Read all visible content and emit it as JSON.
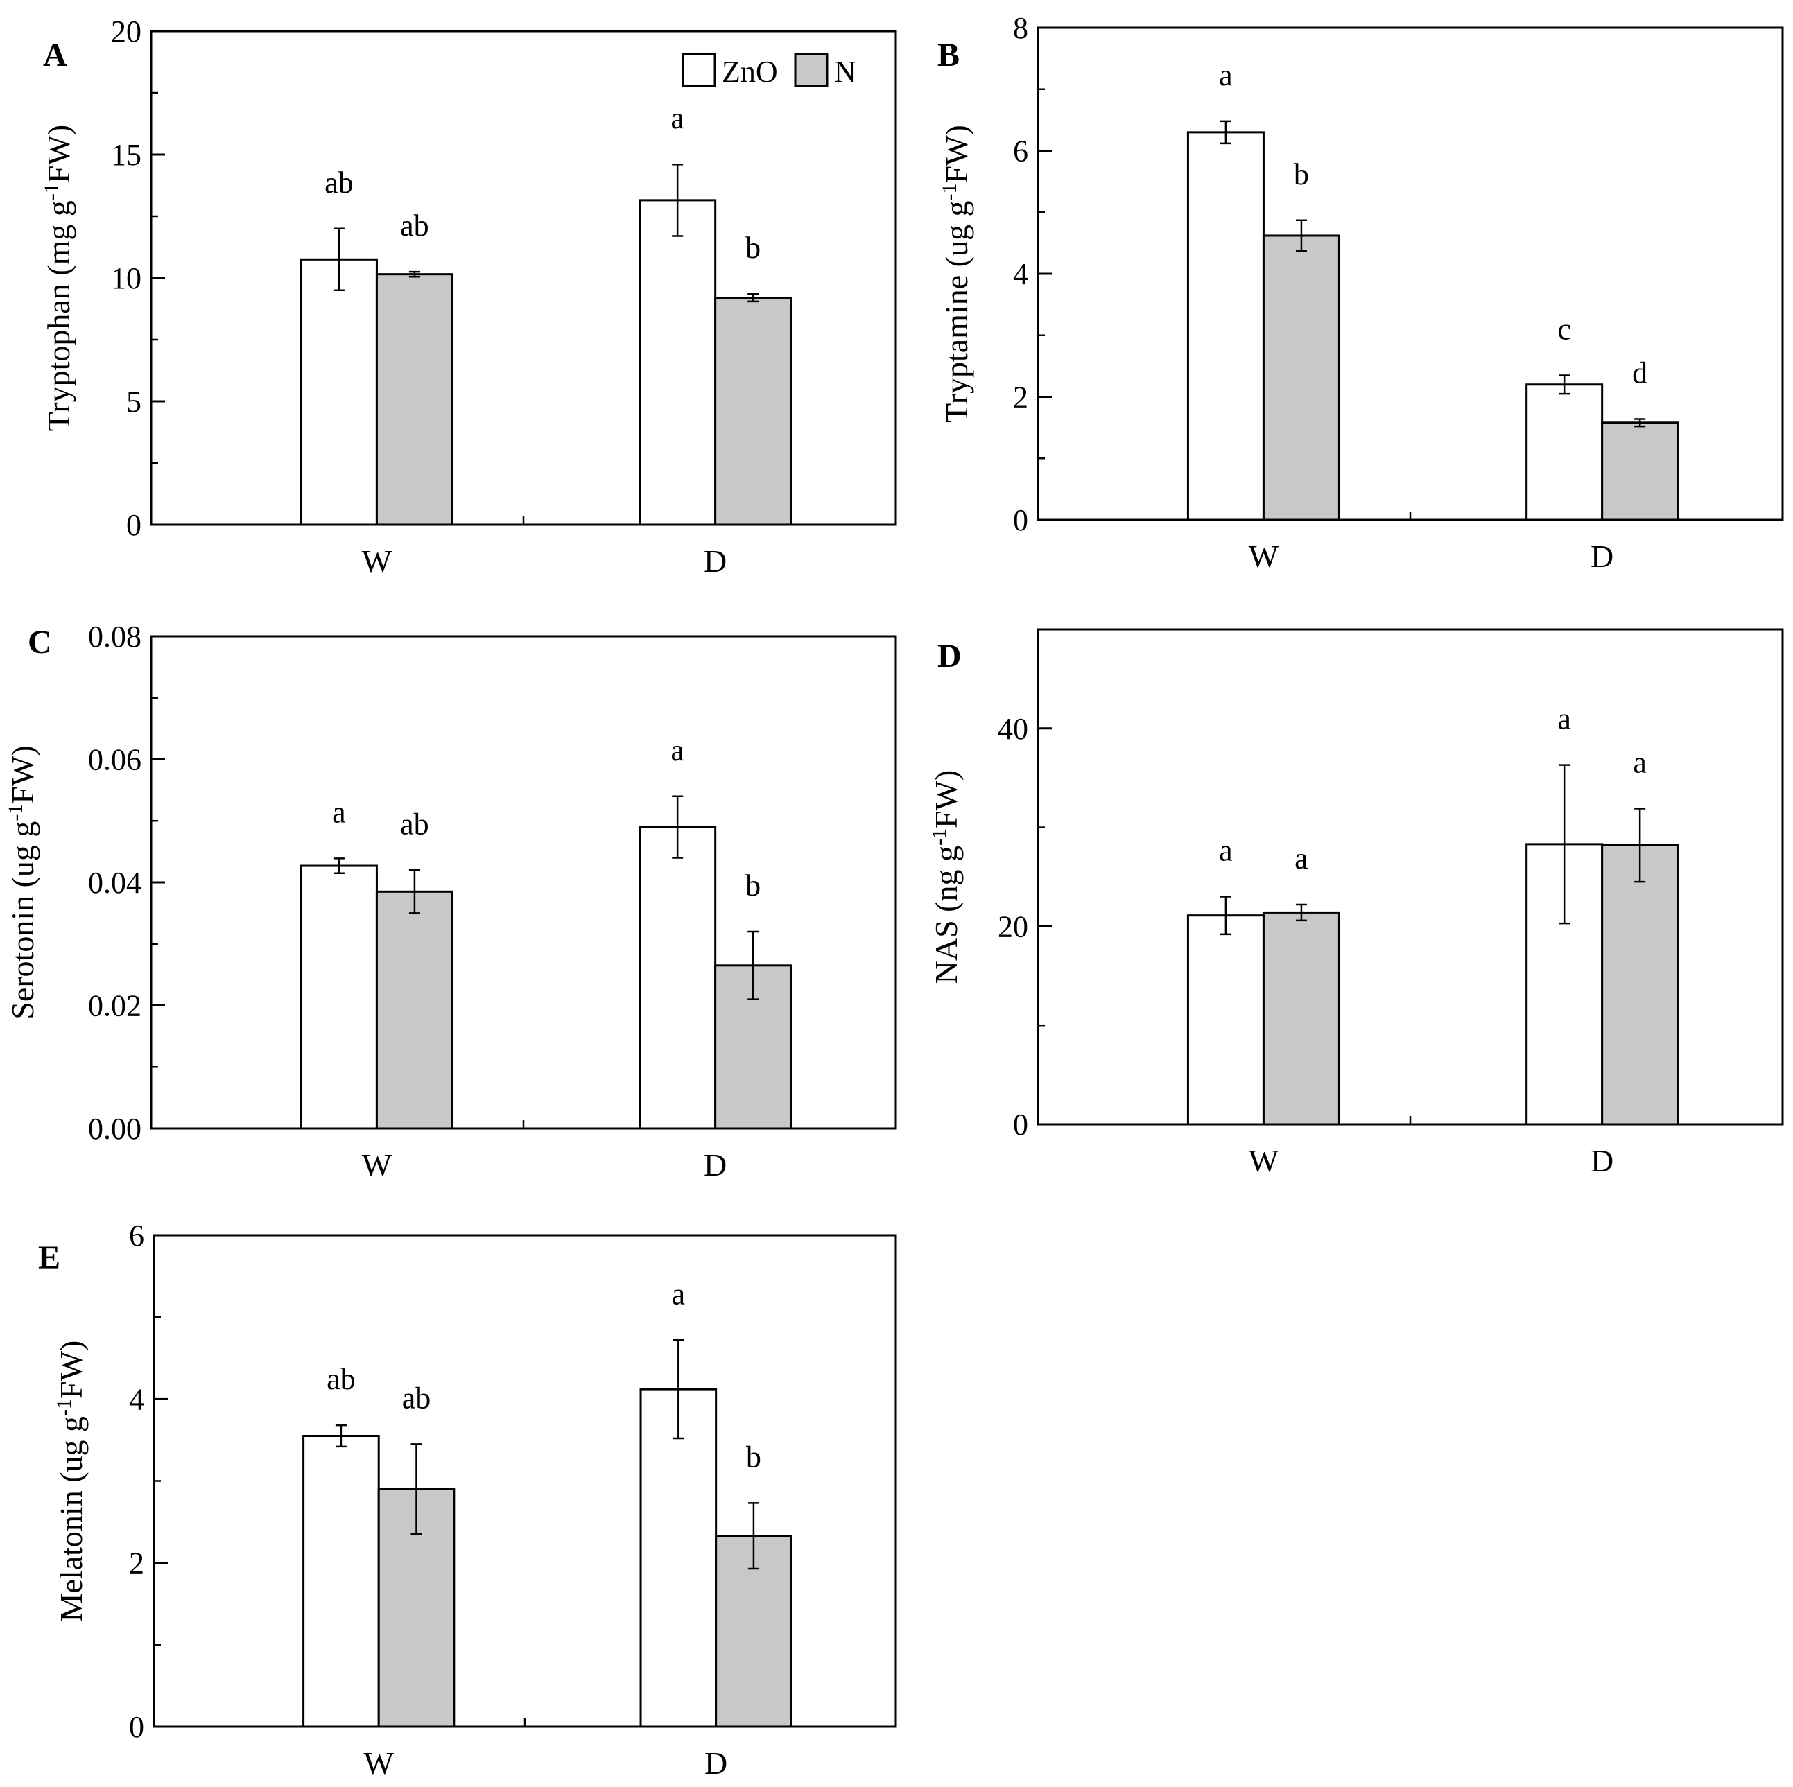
{
  "colors": {
    "zno": "#ffffff",
    "n": "#c8c8c8",
    "stroke": "#000000"
  },
  "legend": {
    "items": [
      {
        "label": "ZnO",
        "color": "#ffffff"
      },
      {
        "label": "N",
        "color": "#c8c8c8"
      }
    ]
  },
  "chart_data": [
    {
      "type": "bar",
      "panel": "A",
      "ylabel_main": "Tryptophan (mg g",
      "ylabel_sup": "-1",
      "ylabel_end": "FW)",
      "categories": [
        "W",
        "D"
      ],
      "ylim": [
        0,
        20
      ],
      "yticks": [
        0,
        5,
        10,
        15,
        20
      ],
      "yticklabels": [
        "0",
        "5",
        "10",
        "15",
        "20"
      ],
      "minor_step": 2.5,
      "series": [
        {
          "name": "ZnO",
          "values": [
            10.75,
            13.15
          ],
          "errors": [
            1.25,
            1.45
          ],
          "letters": [
            "ab",
            "a"
          ]
        },
        {
          "name": "N",
          "values": [
            10.15,
            9.2
          ],
          "errors": [
            0.1,
            0.15
          ],
          "letters": [
            "ab",
            "b"
          ]
        }
      ],
      "legend": true
    },
    {
      "type": "bar",
      "panel": "B",
      "ylabel_main": "Tryptamine (ug g",
      "ylabel_sup": "-1",
      "ylabel_end": "FW)",
      "categories": [
        "W",
        "D"
      ],
      "ylim": [
        0,
        8
      ],
      "yticks": [
        0,
        2,
        4,
        6,
        8
      ],
      "yticklabels": [
        "0",
        "2",
        "4",
        "6",
        "8"
      ],
      "minor_step": 1,
      "series": [
        {
          "name": "ZnO",
          "values": [
            6.3,
            2.2
          ],
          "errors": [
            0.18,
            0.15
          ],
          "letters": [
            "a",
            "c"
          ]
        },
        {
          "name": "N",
          "values": [
            4.62,
            1.58
          ],
          "errors": [
            0.25,
            0.06
          ],
          "letters": [
            "b",
            "d"
          ]
        }
      ],
      "legend": false
    },
    {
      "type": "bar",
      "panel": "C",
      "ylabel_main": "Serotonin (ug g",
      "ylabel_sup": "-1",
      "ylabel_end": "FW)",
      "categories": [
        "W",
        "D"
      ],
      "ylim": [
        0,
        0.08
      ],
      "yticks": [
        0,
        0.02,
        0.04,
        0.06,
        0.08
      ],
      "yticklabels": [
        "0.00",
        "0.02",
        "0.04",
        "0.06",
        "0.08"
      ],
      "minor_step": 0.01,
      "series": [
        {
          "name": "ZnO",
          "values": [
            0.0427,
            0.049
          ],
          "errors": [
            0.0012,
            0.005
          ],
          "letters": [
            "a",
            "a"
          ]
        },
        {
          "name": "N",
          "values": [
            0.0385,
            0.0265
          ],
          "errors": [
            0.0035,
            0.0055
          ],
          "letters": [
            "ab",
            "b"
          ]
        }
      ],
      "legend": false
    },
    {
      "type": "bar",
      "panel": "D",
      "ylabel_main": "NAS (ng g",
      "ylabel_sup": "-1",
      "ylabel_end": "FW)",
      "categories": [
        "W",
        "D"
      ],
      "ylim": [
        0,
        50
      ],
      "yticks": [
        0,
        20,
        40
      ],
      "yticklabels": [
        "0",
        "20",
        "40"
      ],
      "minor_step": 10,
      "series": [
        {
          "name": "ZnO",
          "values": [
            21.1,
            28.3
          ],
          "errors": [
            1.9,
            8.0
          ],
          "letters": [
            "a",
            "a"
          ]
        },
        {
          "name": "N",
          "values": [
            21.4,
            28.2
          ],
          "errors": [
            0.8,
            3.7
          ],
          "letters": [
            "a",
            "a"
          ]
        }
      ],
      "legend": false
    },
    {
      "type": "bar",
      "panel": "E",
      "ylabel_main": "Melatonin (ug g",
      "ylabel_sup": "-1",
      "ylabel_end": "FW)",
      "categories": [
        "W",
        "D"
      ],
      "ylim": [
        0,
        6
      ],
      "yticks": [
        0,
        2,
        4,
        6
      ],
      "yticklabels": [
        "0",
        "2",
        "4",
        "6"
      ],
      "minor_step": 1,
      "series": [
        {
          "name": "ZnO",
          "values": [
            3.55,
            4.12
          ],
          "errors": [
            0.13,
            0.6
          ],
          "letters": [
            "ab",
            "a"
          ]
        },
        {
          "name": "N",
          "values": [
            2.9,
            2.33
          ],
          "errors": [
            0.55,
            0.4
          ],
          "letters": [
            "ab",
            "b"
          ]
        }
      ],
      "legend": false
    }
  ]
}
